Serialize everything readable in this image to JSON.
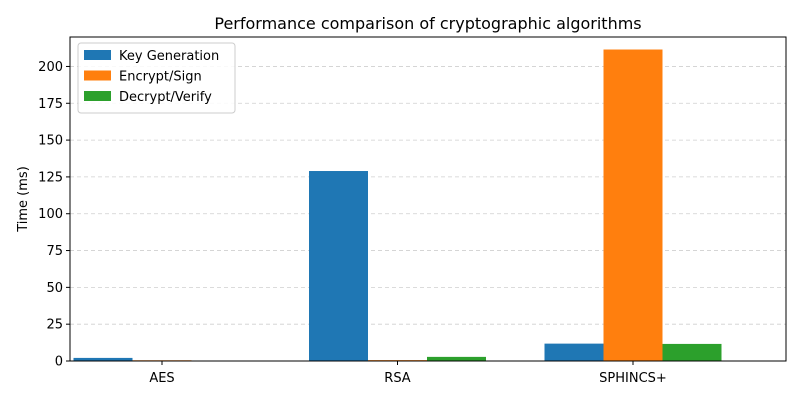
{
  "chart_data": {
    "type": "bar",
    "title": "Performance comparison of cryptographic algorithms",
    "xlabel": "",
    "ylabel": "Time (ms)",
    "categories": [
      "AES",
      "RSA",
      "SPHINCS+"
    ],
    "ylim": [
      0,
      220
    ],
    "yticks": [
      0,
      25,
      50,
      75,
      100,
      125,
      150,
      175,
      200
    ],
    "grid": "y-dashed",
    "legend_position": "top-left",
    "series": [
      {
        "name": "Key Generation",
        "color": "#1f77b4",
        "values": [
          2.1,
          129.0,
          11.8
        ]
      },
      {
        "name": "Encrypt/Sign",
        "color": "#ff7f0e",
        "values": [
          0.5,
          0.6,
          211.5
        ]
      },
      {
        "name": "Decrypt/Verify",
        "color": "#2ca02c",
        "values": [
          0.2,
          2.8,
          11.6
        ]
      }
    ]
  }
}
